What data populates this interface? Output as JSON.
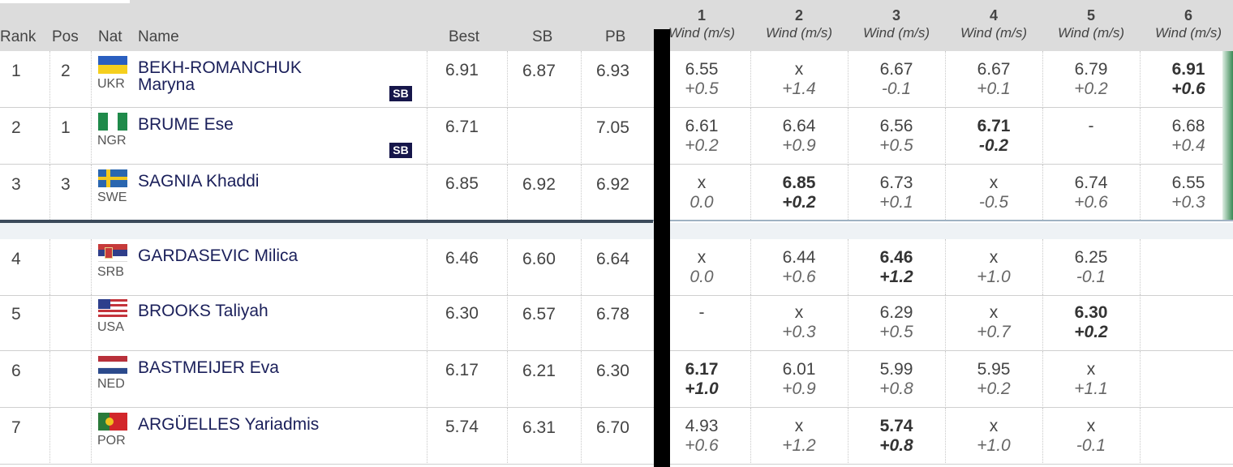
{
  "header": {
    "rank": "Rank",
    "pos": "Pos",
    "nat": "Nat",
    "name": "Name",
    "best": "Best",
    "sb": "SB",
    "pb": "PB",
    "attempts": [
      "1",
      "2",
      "3",
      "4",
      "5",
      "6"
    ],
    "wind_label": "Wind (m/s)"
  },
  "rows": [
    {
      "rank": "1",
      "pos": "2",
      "nat": "UKR",
      "name": "BEKH-ROMANCHUK\nMaryna",
      "badge": "SB",
      "best": "6.91",
      "sb": "6.87",
      "pb": "6.93",
      "attempts": [
        {
          "m": "6.55",
          "w": "+0.5"
        },
        {
          "m": "x",
          "w": "+1.4"
        },
        {
          "m": "6.67",
          "w": "-0.1"
        },
        {
          "m": "6.67",
          "w": "+0.1"
        },
        {
          "m": "6.79",
          "w": "+0.2"
        },
        {
          "m": "6.91",
          "w": "+0.6",
          "best": true
        }
      ]
    },
    {
      "rank": "2",
      "pos": "1",
      "nat": "NGR",
      "name": "BRUME Ese",
      "badge": "SB",
      "best": "6.71",
      "sb": "",
      "pb": "7.05",
      "attempts": [
        {
          "m": "6.61",
          "w": "+0.2"
        },
        {
          "m": "6.64",
          "w": "+0.9"
        },
        {
          "m": "6.56",
          "w": "+0.5"
        },
        {
          "m": "6.71",
          "w": "-0.2",
          "best": true
        },
        {
          "m": "-",
          "w": ""
        },
        {
          "m": "6.68",
          "w": "+0.4"
        }
      ]
    },
    {
      "rank": "3",
      "pos": "3",
      "nat": "SWE",
      "name": "SAGNIA Khaddi",
      "badge": "",
      "best": "6.85",
      "sb": "6.92",
      "pb": "6.92",
      "attempts": [
        {
          "m": "x",
          "w": "0.0"
        },
        {
          "m": "6.85",
          "w": "+0.2",
          "best": true
        },
        {
          "m": "6.73",
          "w": "+0.1"
        },
        {
          "m": "x",
          "w": "-0.5"
        },
        {
          "m": "6.74",
          "w": "+0.6"
        },
        {
          "m": "6.55",
          "w": "+0.3"
        }
      ]
    },
    {
      "rank": "4",
      "pos": "",
      "nat": "SRB",
      "name": "GARDASEVIC Milica",
      "badge": "",
      "best": "6.46",
      "sb": "6.60",
      "pb": "6.64",
      "attempts": [
        {
          "m": "x",
          "w": "0.0"
        },
        {
          "m": "6.44",
          "w": "+0.6"
        },
        {
          "m": "6.46",
          "w": "+1.2",
          "best": true
        },
        {
          "m": "x",
          "w": "+1.0"
        },
        {
          "m": "6.25",
          "w": "-0.1"
        }
      ]
    },
    {
      "rank": "5",
      "pos": "",
      "nat": "USA",
      "name": "BROOKS Taliyah",
      "badge": "",
      "best": "6.30",
      "sb": "6.57",
      "pb": "6.78",
      "attempts": [
        {
          "m": "-",
          "w": ""
        },
        {
          "m": "x",
          "w": "+0.3"
        },
        {
          "m": "6.29",
          "w": "+0.5"
        },
        {
          "m": "x",
          "w": "+0.7"
        },
        {
          "m": "6.30",
          "w": "+0.2",
          "best": true
        }
      ]
    },
    {
      "rank": "6",
      "pos": "",
      "nat": "NED",
      "name": "BASTMEIJER Eva",
      "badge": "",
      "best": "6.17",
      "sb": "6.21",
      "pb": "6.30",
      "attempts": [
        {
          "m": "6.17",
          "w": "+1.0",
          "best": true
        },
        {
          "m": "6.01",
          "w": "+0.9"
        },
        {
          "m": "5.99",
          "w": "+0.8"
        },
        {
          "m": "5.95",
          "w": "+0.2"
        },
        {
          "m": "x",
          "w": "+1.1"
        }
      ]
    },
    {
      "rank": "7",
      "pos": "",
      "nat": "POR",
      "name": "ARGÜELLES Yariadmis",
      "badge": "",
      "best": "5.74",
      "sb": "6.31",
      "pb": "6.70",
      "attempts": [
        {
          "m": "4.93",
          "w": "+0.6"
        },
        {
          "m": "x",
          "w": "+1.2"
        },
        {
          "m": "5.74",
          "w": "+0.8",
          "best": true
        },
        {
          "m": "x",
          "w": "+1.0"
        },
        {
          "m": "x",
          "w": "-0.1"
        }
      ]
    }
  ]
}
